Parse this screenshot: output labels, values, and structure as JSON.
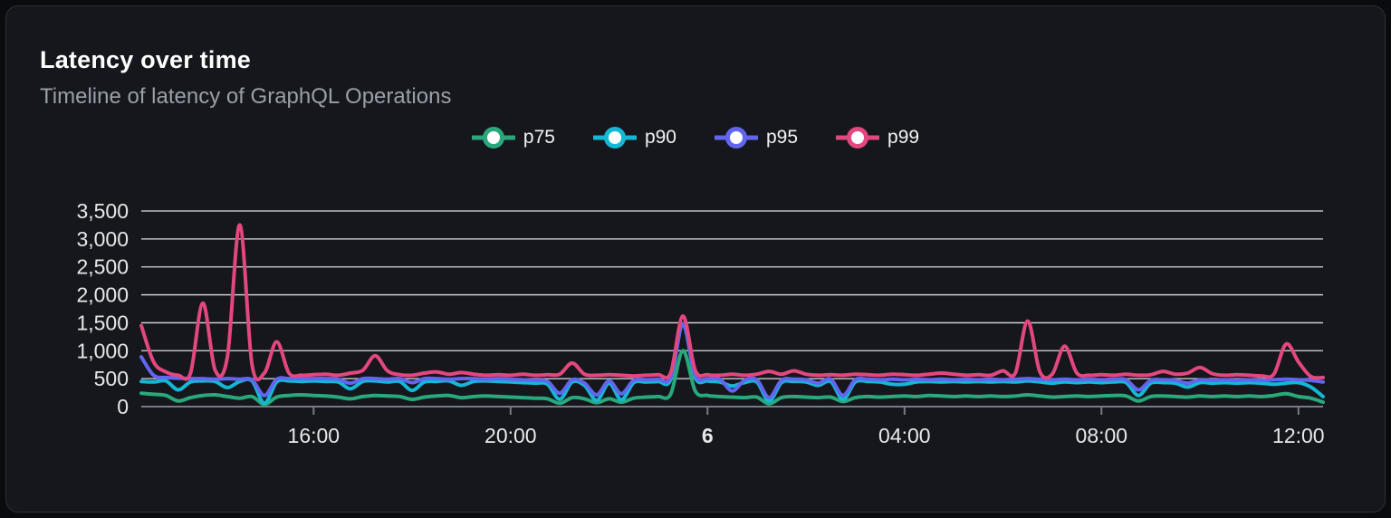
{
  "panel": {
    "title": "Latency over time",
    "subtitle": "Timeline of latency of GraphQL Operations"
  },
  "colors": {
    "panel_background": "#15171c",
    "panel_border": "#2d3038",
    "title_text": "#ffffff",
    "subtitle_text": "#9aa0a8",
    "gridline": "#dcdee2",
    "axis_line": "#767b85",
    "tick_label": "#e6e8eb",
    "legend_text": "#f2f3f5",
    "marker_fill": "#ffffff"
  },
  "chart_data": {
    "type": "line",
    "title": "Latency over time",
    "subtitle": "Timeline of latency of GraphQL Operations",
    "xlabel": "",
    "ylabel": "",
    "ylim": [
      0,
      3500
    ],
    "grid": "horizontal",
    "legend_position": "top-center",
    "y_ticks": [
      {
        "value": 0,
        "label": "0"
      },
      {
        "value": 500,
        "label": "500"
      },
      {
        "value": 1000,
        "label": "1,000"
      },
      {
        "value": 1500,
        "label": "1,500"
      },
      {
        "value": 2000,
        "label": "2,000"
      },
      {
        "value": 2500,
        "label": "2,500"
      },
      {
        "value": 3000,
        "label": "3,000"
      },
      {
        "value": 3500,
        "label": "3,500"
      }
    ],
    "x": [
      "12:30",
      "12:45",
      "13:00",
      "13:15",
      "13:30",
      "13:45",
      "14:00",
      "14:15",
      "14:30",
      "14:45",
      "15:00",
      "15:15",
      "15:30",
      "15:45",
      "16:00",
      "16:15",
      "16:30",
      "16:45",
      "17:00",
      "17:15",
      "17:30",
      "17:45",
      "18:00",
      "18:15",
      "18:30",
      "18:45",
      "19:00",
      "19:15",
      "19:30",
      "19:45",
      "20:00",
      "20:15",
      "20:30",
      "20:45",
      "21:00",
      "21:15",
      "21:30",
      "21:45",
      "22:00",
      "22:15",
      "22:30",
      "22:45",
      "23:00",
      "23:15",
      "23:30",
      "23:45",
      "00:00",
      "00:15",
      "00:30",
      "00:45",
      "01:00",
      "01:15",
      "01:30",
      "01:45",
      "02:00",
      "02:15",
      "02:30",
      "02:45",
      "03:00",
      "03:15",
      "03:30",
      "03:45",
      "04:00",
      "04:15",
      "04:30",
      "04:45",
      "05:00",
      "05:15",
      "05:30",
      "05:45",
      "06:00",
      "06:15",
      "06:30",
      "06:45",
      "07:00",
      "07:15",
      "07:30",
      "07:45",
      "08:00",
      "08:15",
      "08:30",
      "08:45",
      "09:00",
      "09:15",
      "09:30",
      "09:45",
      "10:00",
      "10:15",
      "10:30",
      "10:45",
      "11:00",
      "11:15",
      "11:30",
      "11:45",
      "12:00",
      "12:15",
      "12:30"
    ],
    "x_ticks": [
      {
        "index": 14,
        "label": "16:00",
        "bold": false
      },
      {
        "index": 30,
        "label": "20:00",
        "bold": false
      },
      {
        "index": 46,
        "label": "6",
        "bold": true
      },
      {
        "index": 62,
        "label": "04:00",
        "bold": false
      },
      {
        "index": 78,
        "label": "08:00",
        "bold": false
      },
      {
        "index": 94,
        "label": "12:00",
        "bold": false
      }
    ],
    "series": [
      {
        "name": "p75",
        "color": "#29a87b",
        "values": [
          240,
          220,
          200,
          100,
          160,
          200,
          210,
          180,
          150,
          180,
          40,
          170,
          200,
          210,
          200,
          190,
          170,
          140,
          180,
          200,
          190,
          180,
          130,
          170,
          190,
          200,
          160,
          180,
          190,
          180,
          170,
          160,
          150,
          140,
          60,
          160,
          140,
          70,
          140,
          80,
          150,
          170,
          180,
          220,
          1000,
          280,
          200,
          180,
          170,
          160,
          170,
          50,
          160,
          180,
          170,
          160,
          170,
          90,
          160,
          180,
          170,
          180,
          190,
          180,
          200,
          190,
          180,
          190,
          180,
          190,
          180,
          190,
          210,
          190,
          170,
          180,
          190,
          180,
          190,
          200,
          190,
          100,
          180,
          190,
          180,
          170,
          190,
          180,
          190,
          180,
          190,
          180,
          200,
          230,
          180,
          150,
          80
        ]
      },
      {
        "name": "p90",
        "color": "#14b8d4",
        "values": [
          450,
          440,
          460,
          300,
          440,
          460,
          450,
          340,
          450,
          460,
          60,
          440,
          460,
          450,
          460,
          450,
          440,
          320,
          450,
          460,
          440,
          450,
          290,
          440,
          450,
          460,
          380,
          450,
          460,
          450,
          440,
          430,
          420,
          400,
          130,
          440,
          380,
          110,
          420,
          120,
          430,
          440,
          450,
          480,
          1470,
          520,
          460,
          440,
          370,
          430,
          440,
          100,
          430,
          450,
          440,
          380,
          450,
          130,
          440,
          450,
          440,
          400,
          400,
          440,
          450,
          440,
          450,
          440,
          450,
          440,
          450,
          440,
          460,
          440,
          420,
          440,
          430,
          440,
          430,
          440,
          430,
          200,
          420,
          430,
          420,
          350,
          430,
          420,
          430,
          420,
          430,
          420,
          400,
          420,
          430,
          350,
          180
        ]
      },
      {
        "name": "p95",
        "color": "#6266ef",
        "values": [
          890,
          560,
          520,
          510,
          500,
          500,
          490,
          500,
          490,
          480,
          200,
          490,
          500,
          500,
          500,
          500,
          490,
          420,
          500,
          500,
          490,
          500,
          430,
          500,
          500,
          490,
          500,
          500,
          490,
          500,
          490,
          480,
          470,
          450,
          240,
          480,
          420,
          210,
          460,
          230,
          470,
          480,
          490,
          520,
          1480,
          560,
          500,
          490,
          280,
          470,
          480,
          160,
          470,
          490,
          480,
          420,
          490,
          200,
          480,
          490,
          480,
          490,
          480,
          490,
          480,
          490,
          480,
          490,
          480,
          490,
          480,
          490,
          500,
          490,
          480,
          490,
          480,
          490,
          480,
          490,
          480,
          300,
          470,
          480,
          470,
          420,
          480,
          470,
          480,
          470,
          480,
          470,
          480,
          490,
          480,
          470,
          440
        ]
      },
      {
        "name": "p99",
        "color": "#e2477f",
        "values": [
          1450,
          800,
          620,
          560,
          600,
          1850,
          650,
          900,
          3250,
          750,
          600,
          1160,
          600,
          560,
          570,
          580,
          560,
          600,
          650,
          910,
          640,
          570,
          560,
          600,
          620,
          580,
          610,
          580,
          560,
          570,
          560,
          580,
          560,
          570,
          580,
          780,
          580,
          560,
          570,
          560,
          550,
          560,
          570,
          600,
          1620,
          650,
          570,
          560,
          580,
          560,
          580,
          630,
          580,
          640,
          580,
          560,
          570,
          560,
          580,
          570,
          560,
          580,
          570,
          560,
          580,
          600,
          580,
          560,
          570,
          560,
          640,
          600,
          1530,
          620,
          580,
          1080,
          600,
          560,
          570,
          560,
          580,
          560,
          570,
          630,
          580,
          600,
          700,
          590,
          560,
          570,
          560,
          550,
          580,
          1120,
          800,
          540,
          520
        ]
      }
    ]
  }
}
